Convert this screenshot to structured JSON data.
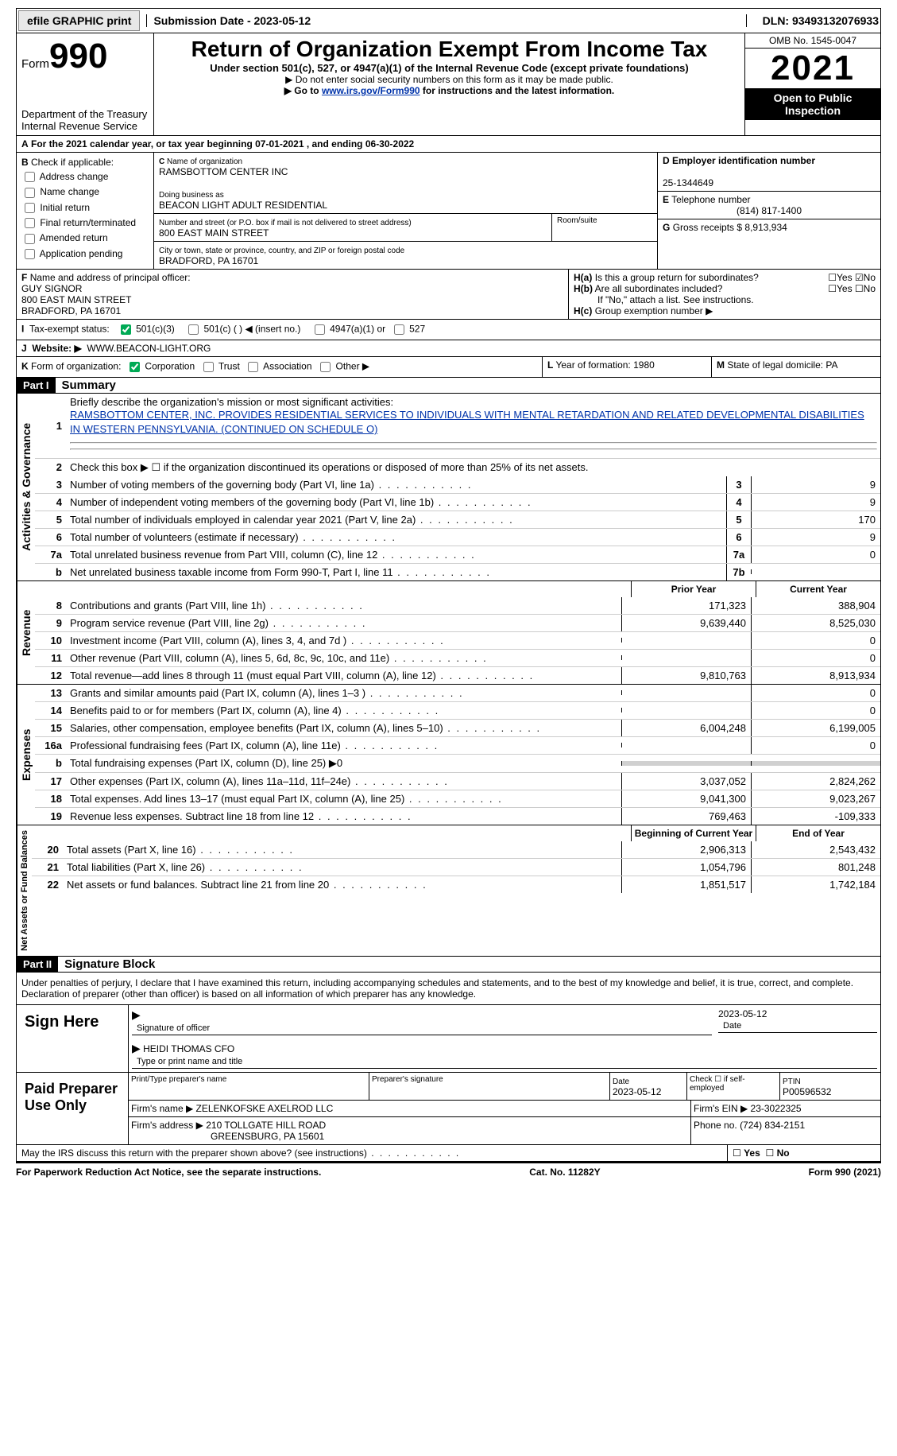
{
  "topbar": {
    "efile": "efile GRAPHIC print",
    "sub": "Submission Date - 2023-05-12",
    "dln": "DLN: 93493132076933"
  },
  "header": {
    "form_label": "Form",
    "form_no": "990",
    "dept": "Department of the Treasury\nInternal Revenue Service",
    "title": "Return of Organization Exempt From Income Tax",
    "s1": "Under section 501(c), 527, or 4947(a)(1) of the Internal Revenue Code (except private foundations)",
    "s2": "▶ Do not enter social security numbers on this form as it may be made public.",
    "s3_pre": "▶ Go to ",
    "s3_link": "www.irs.gov/Form990",
    "s3_post": " for instructions and the latest information.",
    "omb": "OMB No. 1545-0047",
    "year": "2021",
    "inspect": "Open to Public Inspection"
  },
  "A": {
    "text": "For the 2021 calendar year, or tax year beginning 07-01-2021    , and ending 06-30-2022"
  },
  "B": {
    "label": "Check if applicable:",
    "items": [
      "Address change",
      "Name change",
      "Initial return",
      "Final return/terminated",
      "Amended return",
      "Application pending"
    ]
  },
  "C": {
    "name_lbl": "Name of organization",
    "name": "RAMSBOTTOM CENTER INC",
    "dba_lbl": "Doing business as",
    "dba": "BEACON LIGHT ADULT RESIDENTIAL",
    "addr_lbl": "Number and street (or P.O. box if mail is not delivered to street address)",
    "room_lbl": "Room/suite",
    "addr": "800 EAST MAIN STREET",
    "city_lbl": "City or town, state or province, country, and ZIP or foreign postal code",
    "city": "BRADFORD, PA  16701"
  },
  "D": {
    "lbl": "Employer identification number",
    "val": "25-1344649"
  },
  "E": {
    "lbl": "Telephone number",
    "val": "(814) 817-1400"
  },
  "G": {
    "lbl": "Gross receipts $",
    "val": "8,913,934"
  },
  "F": {
    "lbl": "Name and address of principal officer:",
    "name": "GUY SIGNOR",
    "addr1": "800 EAST MAIN STREET",
    "addr2": "BRADFORD, PA  16701"
  },
  "H": {
    "a": "Is this a group return for subordinates?",
    "a_no": true,
    "b": "Are all subordinates included?",
    "b_note": "If \"No,\" attach a list. See instructions.",
    "c": "Group exemption number ▶"
  },
  "I": {
    "lbl": "Tax-exempt status:",
    "opt1": "501(c)(3)",
    "opt2": "501(c) (  ) ◀ (insert no.)",
    "opt3": "4947(a)(1) or",
    "opt4": "527",
    "checked": 1
  },
  "J": {
    "lbl": "Website: ▶",
    "val": "WWW.BEACON-LIGHT.ORG"
  },
  "K": {
    "lbl": "Form of organization:",
    "opts": [
      "Corporation",
      "Trust",
      "Association",
      "Other ▶"
    ],
    "checked": 0
  },
  "L": {
    "lbl": "Year of formation:",
    "val": "1980"
  },
  "M": {
    "lbl": "State of legal domicile:",
    "val": "PA"
  },
  "partI": {
    "hdr": "Part I",
    "title": "Summary"
  },
  "mission": {
    "lbl": "Briefly describe the organization's mission or most significant activities:",
    "text": "RAMSBOTTOM CENTER, INC. PROVIDES RESIDENTIAL SERVICES TO INDIVIDUALS WITH MENTAL RETARDATION AND RELATED DEVELOPMENTAL DISABILITIES IN WESTERN PENNSYLVANIA. (CONTINUED ON SCHEDULE O)"
  },
  "gov": {
    "vlabel": "Activities & Governance",
    "line2": "Check this box ▶ ☐ if the organization discontinued its operations or disposed of more than 25% of its net assets.",
    "rows": [
      {
        "n": "3",
        "d": "Number of voting members of the governing body (Part VI, line 1a)",
        "b": "3",
        "v": "9"
      },
      {
        "n": "4",
        "d": "Number of independent voting members of the governing body (Part VI, line 1b)",
        "b": "4",
        "v": "9"
      },
      {
        "n": "5",
        "d": "Total number of individuals employed in calendar year 2021 (Part V, line 2a)",
        "b": "5",
        "v": "170"
      },
      {
        "n": "6",
        "d": "Total number of volunteers (estimate if necessary)",
        "b": "6",
        "v": "9"
      },
      {
        "n": "7a",
        "d": "Total unrelated business revenue from Part VIII, column (C), line 12",
        "b": "7a",
        "v": "0"
      },
      {
        "n": "b",
        "d": "Net unrelated business taxable income from Form 990-T, Part I, line 11",
        "b": "7b",
        "v": ""
      }
    ]
  },
  "rev": {
    "vlabel": "Revenue",
    "hdr_prior": "Prior Year",
    "hdr_curr": "Current Year",
    "rows": [
      {
        "n": "8",
        "d": "Contributions and grants (Part VIII, line 1h)",
        "p": "171,323",
        "c": "388,904"
      },
      {
        "n": "9",
        "d": "Program service revenue (Part VIII, line 2g)",
        "p": "9,639,440",
        "c": "8,525,030"
      },
      {
        "n": "10",
        "d": "Investment income (Part VIII, column (A), lines 3, 4, and 7d )",
        "p": "",
        "c": "0"
      },
      {
        "n": "11",
        "d": "Other revenue (Part VIII, column (A), lines 5, 6d, 8c, 9c, 10c, and 11e)",
        "p": "",
        "c": "0"
      },
      {
        "n": "12",
        "d": "Total revenue—add lines 8 through 11 (must equal Part VIII, column (A), line 12)",
        "p": "9,810,763",
        "c": "8,913,934"
      }
    ]
  },
  "exp": {
    "vlabel": "Expenses",
    "rows": [
      {
        "n": "13",
        "d": "Grants and similar amounts paid (Part IX, column (A), lines 1–3 )",
        "p": "",
        "c": "0"
      },
      {
        "n": "14",
        "d": "Benefits paid to or for members (Part IX, column (A), line 4)",
        "p": "",
        "c": "0"
      },
      {
        "n": "15",
        "d": "Salaries, other compensation, employee benefits (Part IX, column (A), lines 5–10)",
        "p": "6,004,248",
        "c": "6,199,005"
      },
      {
        "n": "16a",
        "d": "Professional fundraising fees (Part IX, column (A), line 11e)",
        "p": "",
        "c": "0"
      },
      {
        "n": "b",
        "d": "Total fundraising expenses (Part IX, column (D), line 25) ▶0",
        "shaded": true
      },
      {
        "n": "17",
        "d": "Other expenses (Part IX, column (A), lines 11a–11d, 11f–24e)",
        "p": "3,037,052",
        "c": "2,824,262"
      },
      {
        "n": "18",
        "d": "Total expenses. Add lines 13–17 (must equal Part IX, column (A), line 25)",
        "p": "9,041,300",
        "c": "9,023,267"
      },
      {
        "n": "19",
        "d": "Revenue less expenses. Subtract line 18 from line 12",
        "p": "769,463",
        "c": "-109,333"
      }
    ]
  },
  "net": {
    "vlabel": "Net Assets or Fund Balances",
    "hdr_beg": "Beginning of Current Year",
    "hdr_end": "End of Year",
    "rows": [
      {
        "n": "20",
        "d": "Total assets (Part X, line 16)",
        "p": "2,906,313",
        "c": "2,543,432"
      },
      {
        "n": "21",
        "d": "Total liabilities (Part X, line 26)",
        "p": "1,054,796",
        "c": "801,248"
      },
      {
        "n": "22",
        "d": "Net assets or fund balances. Subtract line 21 from line 20",
        "p": "1,851,517",
        "c": "1,742,184"
      }
    ]
  },
  "partII": {
    "hdr": "Part II",
    "title": "Signature Block",
    "decl": "Under penalties of perjury, I declare that I have examined this return, including accompanying schedules and statements, and to the best of my knowledge and belief, it is true, correct, and complete. Declaration of preparer (other than officer) is based on all information of which preparer has any knowledge."
  },
  "sign": {
    "lbl": "Sign Here",
    "sig_lbl": "Signature of officer",
    "date": "2023-05-12",
    "date_lbl": "Date",
    "name": "HEIDI THOMAS CFO",
    "name_lbl": "Type or print name and title"
  },
  "paid": {
    "lbl": "Paid Preparer Use Only",
    "r1": {
      "c1_lbl": "Print/Type preparer's name",
      "c2_lbl": "Preparer's signature",
      "c3_lbl": "Date",
      "c3": "2023-05-12",
      "c4_lbl": "Check ☐ if self-employed",
      "c5_lbl": "PTIN",
      "c5": "P00596532"
    },
    "r2": {
      "lbl": "Firm's name    ▶",
      "val": "ZELENKOFSKE AXELROD LLC",
      "ein_lbl": "Firm's EIN ▶",
      "ein": "23-3022325"
    },
    "r3": {
      "lbl": "Firm's address ▶",
      "val1": "210 TOLLGATE HILL ROAD",
      "val2": "GREENSBURG, PA  15601",
      "ph_lbl": "Phone no.",
      "ph": "(724) 834-2151"
    }
  },
  "discuss": "May the IRS discuss this return with the preparer shown above? (see instructions)",
  "footer": {
    "l": "For Paperwork Reduction Act Notice, see the separate instructions.",
    "m": "Cat. No. 11282Y",
    "r": "Form 990 (2021)"
  }
}
